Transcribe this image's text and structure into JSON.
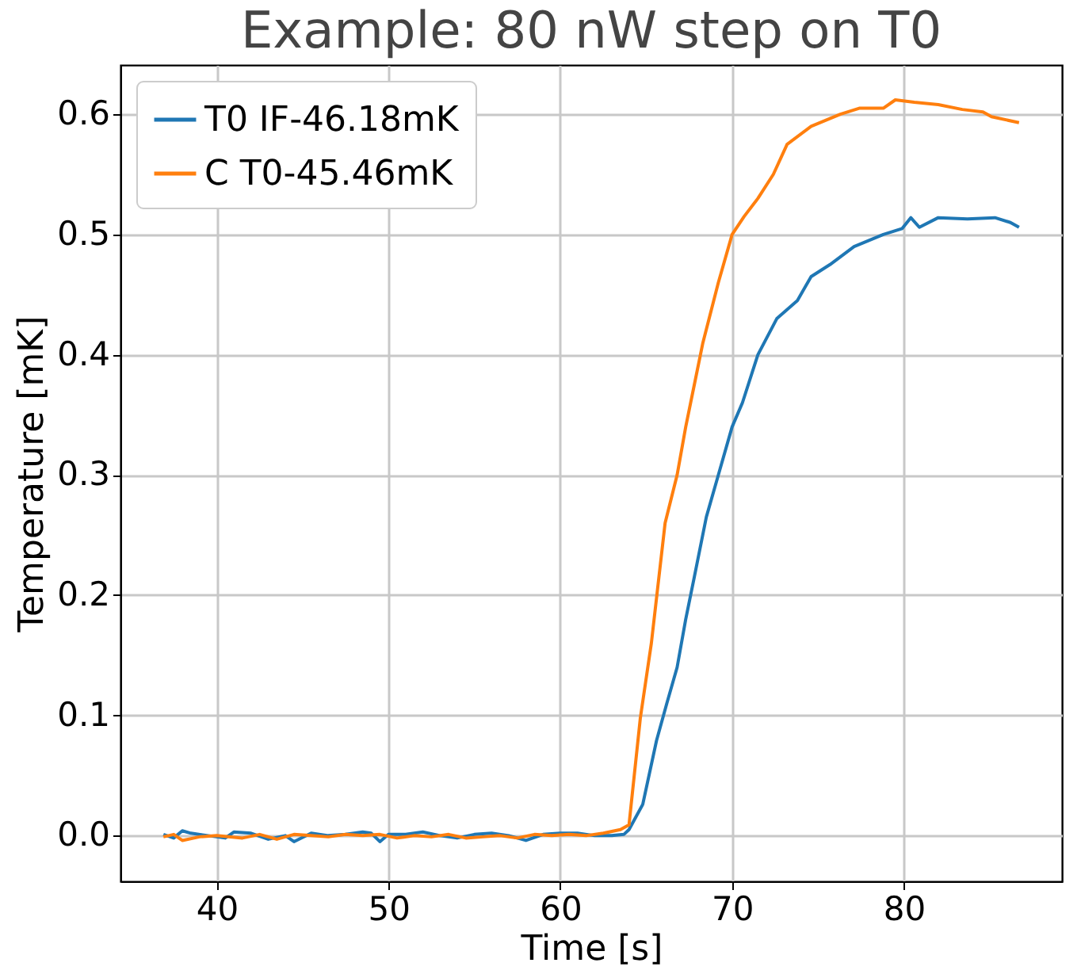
{
  "chart_data": {
    "type": "line",
    "title": "Example: 80 nW step on T0",
    "xlabel": "Time [s]",
    "ylabel": "Temperature [mK]",
    "xlim": [
      34.4,
      89.2
    ],
    "xticks": [
      40,
      50,
      60,
      70,
      80
    ],
    "ylim": [
      -0.038,
      0.641
    ],
    "yticks": [
      {
        "value": 0,
        "label": "0.0"
      },
      {
        "value": 0.1,
        "label": "0.1"
      },
      {
        "value": 0.2,
        "label": "0.2"
      },
      {
        "value": 0.3,
        "label": "0.3"
      },
      {
        "value": 0.4,
        "label": "0.4"
      },
      {
        "value": 0.5,
        "label": "0.5"
      },
      {
        "value": 0.6,
        "label": "0.6"
      }
    ],
    "grid": true,
    "legend": "top left",
    "line_style": "solid",
    "marker": "none",
    "series": [
      {
        "name": "T0 IF-46.18mK",
        "color": "#1f77b4",
        "x": [
          36.9,
          37.5,
          38.0,
          38.5,
          39.5,
          40.5,
          41.0,
          42.0,
          43.0,
          44.0,
          44.5,
          45.5,
          46.5,
          47.5,
          48.5,
          49.0,
          49.5,
          50.0,
          51.0,
          52.0,
          53.0,
          54.0,
          55.0,
          56.0,
          57.0,
          58.0,
          59.0,
          60.0,
          61.0,
          62.0,
          63.0,
          63.7,
          64.0,
          64.8,
          65.6,
          66.2,
          66.8,
          67.3,
          67.8,
          68.5,
          69.2,
          70.0,
          70.6,
          71.5,
          72.6,
          73.8,
          74.6,
          75.7,
          77.1,
          78.8,
          79.9,
          80.4,
          80.9,
          82.0,
          83.7,
          85.3,
          86.2,
          86.7
        ],
        "values": [
          0.001,
          -0.002,
          0.004,
          0.002,
          0.0,
          -0.002,
          0.003,
          0.002,
          -0.003,
          0.0,
          -0.005,
          0.002,
          0.0,
          0.001,
          0.003,
          0.002,
          -0.005,
          0.001,
          0.001,
          0.003,
          0.0,
          -0.002,
          0.001,
          0.002,
          0.0,
          -0.004,
          0.001,
          0.002,
          0.002,
          0.0,
          0.0,
          0.001,
          0.005,
          0.026,
          0.079,
          0.11,
          0.14,
          0.18,
          0.215,
          0.265,
          0.3,
          0.34,
          0.36,
          0.4,
          0.43,
          0.445,
          0.465,
          0.475,
          0.49,
          0.5,
          0.505,
          0.514,
          0.506,
          0.514,
          0.513,
          0.514,
          0.51,
          0.506
        ]
      },
      {
        "name": "C T0-45.46mK",
        "color": "#ff7f0e",
        "x": [
          36.9,
          37.5,
          38.0,
          39.0,
          40.0,
          41.5,
          42.5,
          43.5,
          44.5,
          45.5,
          46.5,
          47.5,
          48.5,
          49.5,
          50.5,
          51.5,
          52.5,
          53.5,
          54.5,
          55.5,
          56.5,
          57.5,
          58.5,
          59.5,
          60.5,
          61.5,
          62.5,
          63.5,
          64.0,
          64.66,
          65.3,
          66.1,
          66.8,
          67.3,
          67.8,
          68.3,
          69.2,
          70.0,
          70.7,
          71.5,
          72.4,
          73.2,
          74.6,
          76.3,
          77.4,
          78.8,
          79.5,
          80.6,
          82.0,
          83.4,
          84.6,
          85.1,
          86.7
        ],
        "values": [
          -0.001,
          0.001,
          -0.004,
          -0.001,
          0.0,
          -0.002,
          0.001,
          -0.003,
          0.001,
          0.0,
          -0.001,
          0.001,
          0.0,
          0.001,
          -0.002,
          0.0,
          -0.001,
          0.001,
          -0.002,
          -0.001,
          0.0,
          -0.002,
          0.001,
          0.0,
          0.001,
          0.0,
          0.002,
          0.005,
          0.009,
          0.098,
          0.16,
          0.26,
          0.3,
          0.34,
          0.375,
          0.41,
          0.46,
          0.5,
          0.515,
          0.53,
          0.55,
          0.575,
          0.59,
          0.6,
          0.605,
          0.605,
          0.612,
          0.61,
          0.608,
          0.604,
          0.602,
          0.598,
          0.593
        ]
      }
    ]
  }
}
